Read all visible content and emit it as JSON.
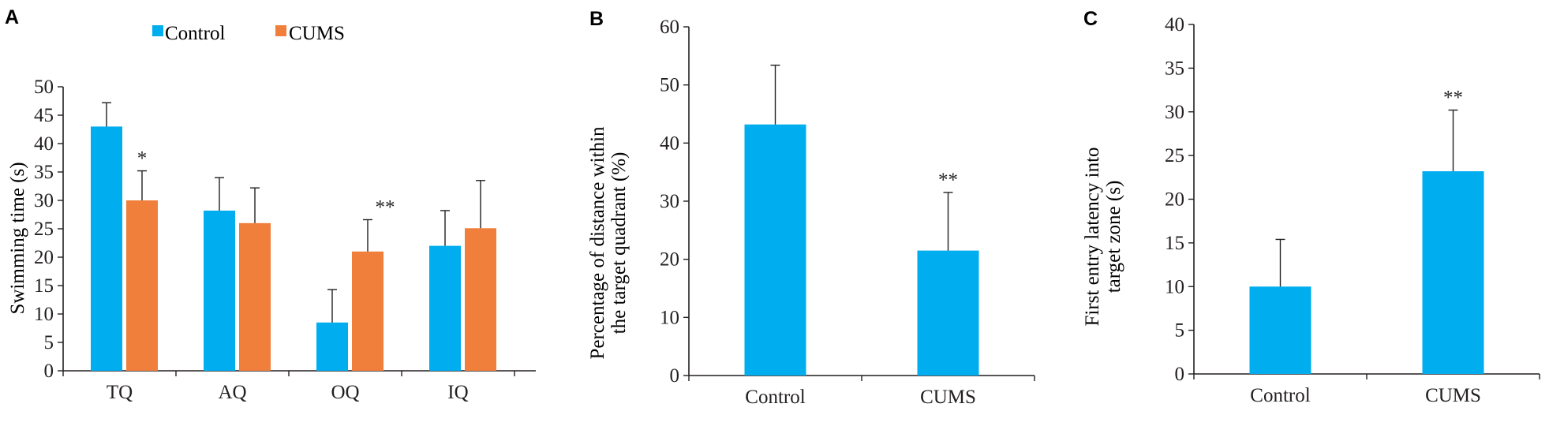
{
  "colors": {
    "control": "#00adef",
    "cums": "#f07f3c",
    "axis": "#231f20"
  },
  "legend": {
    "items": [
      {
        "label": "Control",
        "color": "#00adef"
      },
      {
        "label": "CUMS",
        "color": "#f07f3c"
      }
    ]
  },
  "chart_data": [
    {
      "panel": "A",
      "type": "bar",
      "ylabel": "Swimming time (s)",
      "xlabel": "",
      "ylim": [
        0,
        50
      ],
      "yticks": [
        0,
        5,
        10,
        15,
        20,
        25,
        30,
        35,
        40,
        45,
        50
      ],
      "categories": [
        "TQ",
        "AQ",
        "OQ",
        "IQ"
      ],
      "series": [
        {
          "name": "Control",
          "values": [
            43,
            28.2,
            8.5,
            22
          ],
          "errors": [
            4.2,
            5.8,
            5.8,
            6.2
          ]
        },
        {
          "name": "CUMS",
          "values": [
            30,
            26,
            21,
            25.1
          ],
          "errors": [
            5.2,
            6.2,
            5.6,
            8.4
          ]
        }
      ],
      "annotations": [
        {
          "category": "TQ",
          "series": "CUMS",
          "text": "*"
        },
        {
          "category": "OQ",
          "series": "CUMS",
          "text": "**"
        }
      ],
      "legend_position": "top"
    },
    {
      "panel": "B",
      "type": "bar",
      "ylabel": "Percentage of distance within the target quadrant (%)",
      "ylabel_lines": [
        "Percentage of distance within",
        "the target quadrant (%)"
      ],
      "xlabel": "",
      "ylim": [
        0,
        60
      ],
      "yticks": [
        0,
        10,
        20,
        30,
        40,
        50,
        60
      ],
      "categories": [
        "Control",
        "CUMS"
      ],
      "values": [
        43.2,
        21.5
      ],
      "errors": [
        10.2,
        10
      ],
      "annotations": [
        {
          "category": "CUMS",
          "text": "**"
        }
      ]
    },
    {
      "panel": "C",
      "type": "bar",
      "ylabel": "First entry latency into target zone (s)",
      "ylabel_lines": [
        "First entry latency into",
        "target zone (s)"
      ],
      "xlabel": "",
      "ylim": [
        0,
        40
      ],
      "yticks": [
        0,
        5,
        10,
        15,
        20,
        25,
        30,
        35,
        40
      ],
      "categories": [
        "Control",
        "CUMS"
      ],
      "values": [
        10,
        23.2
      ],
      "errors": [
        5.4,
        7
      ],
      "annotations": [
        {
          "category": "CUMS",
          "text": "**"
        }
      ]
    }
  ]
}
